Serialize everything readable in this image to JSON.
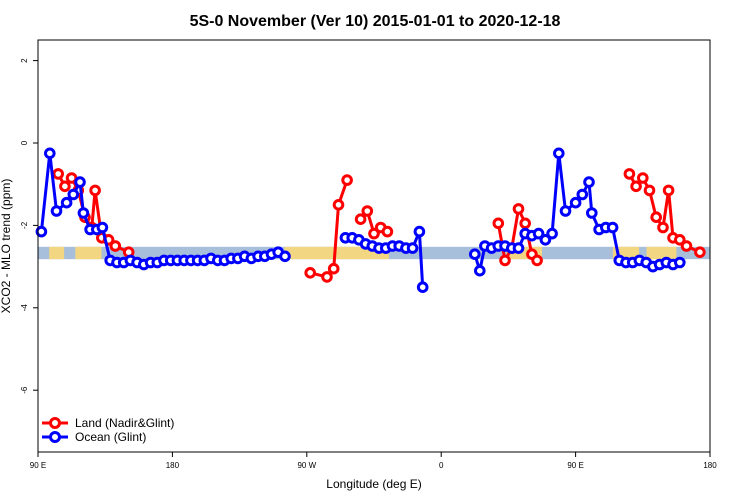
{
  "chart_data": {
    "type": "line",
    "title": "5S-0 November (Ver 10)   2015-01-01 to 2020-12-18",
    "xlabel": "Longitude (deg E)",
    "ylabel": "XCO2 - MLO trend (ppm)",
    "xlim": [
      90,
      450
    ],
    "ylim": [
      -7.5,
      2.5
    ],
    "x_tick_values": [
      90,
      162,
      234,
      306,
      378,
      450
    ],
    "x_tick_labels": [
      "90 E",
      "180",
      "90 W",
      "0",
      "90 E",
      "180"
    ],
    "y_ticks": [
      -6,
      -4,
      -2,
      0,
      2
    ],
    "grid": false,
    "legend_position": "bottom-left",
    "band": {
      "y_low": -2.82,
      "y_high": -2.52,
      "ocean_color": "#a8bfdc",
      "land_color": "#f6d77c"
    },
    "series": [
      {
        "name": "Land (Nadir&Glint)",
        "color": "#ff0000",
        "points": [
          [
            100.8,
            -0.75
          ],
          [
            104.4,
            -1.05
          ],
          [
            108.0,
            -0.85
          ],
          [
            111.6,
            -1.15
          ],
          [
            115.2,
            -1.8
          ],
          [
            118.8,
            -2.05
          ],
          [
            120.6,
            -1.15
          ],
          [
            124.2,
            -2.3
          ],
          [
            127.8,
            -2.35
          ],
          [
            131.4,
            -2.5
          ],
          [
            138.6,
            -2.65
          ],
          null,
          [
            235.8,
            -3.15
          ],
          [
            244.8,
            -3.25
          ],
          [
            248.4,
            -3.05
          ],
          [
            251.0,
            -1.5
          ],
          [
            255.6,
            -0.9
          ],
          null,
          [
            262.8,
            -1.85
          ],
          [
            266.4,
            -1.65
          ],
          [
            270.0,
            -2.2
          ],
          [
            273.6,
            -2.05
          ],
          [
            277.2,
            -2.15
          ],
          null,
          [
            336.6,
            -1.95
          ],
          [
            340.2,
            -2.85
          ],
          [
            343.8,
            -2.55
          ],
          [
            347.4,
            -1.6
          ],
          [
            351.0,
            -1.95
          ],
          [
            354.6,
            -2.7
          ],
          [
            357.4,
            -2.85
          ],
          null,
          [
            406.8,
            -0.75
          ],
          [
            410.4,
            -1.05
          ],
          [
            414.0,
            -0.85
          ],
          [
            417.6,
            -1.15
          ],
          [
            421.2,
            -1.8
          ],
          [
            424.8,
            -2.05
          ],
          [
            427.8,
            -1.15
          ],
          [
            430.2,
            -2.3
          ],
          [
            433.8,
            -2.35
          ],
          [
            437.4,
            -2.5
          ],
          [
            444.6,
            -2.65
          ]
        ]
      },
      {
        "name": "Ocean (Glint)",
        "color": "#0000ff",
        "points": [
          [
            91.8,
            -2.15
          ],
          [
            96.3,
            -0.25
          ],
          [
            99.9,
            -1.65
          ],
          [
            105.3,
            -1.45
          ],
          [
            108.9,
            -1.25
          ],
          [
            112.5,
            -0.95
          ],
          [
            114.3,
            -1.7
          ],
          [
            117.9,
            -2.1
          ],
          [
            121.5,
            -2.1
          ],
          [
            124.5,
            -2.05
          ],
          [
            128.7,
            -2.85
          ],
          [
            132.3,
            -2.9
          ],
          [
            135.9,
            -2.9
          ],
          [
            139.5,
            -2.85
          ],
          [
            143.1,
            -2.9
          ],
          [
            146.7,
            -2.95
          ],
          [
            150.3,
            -2.9
          ],
          [
            153.9,
            -2.9
          ],
          [
            157.5,
            -2.85
          ],
          [
            161.1,
            -2.85
          ],
          [
            164.7,
            -2.85
          ],
          [
            168.3,
            -2.85
          ],
          [
            171.9,
            -2.85
          ],
          [
            175.5,
            -2.85
          ],
          [
            179.1,
            -2.85
          ],
          [
            182.7,
            -2.8
          ],
          [
            186.3,
            -2.85
          ],
          [
            189.9,
            -2.85
          ],
          [
            193.5,
            -2.8
          ],
          [
            197.1,
            -2.8
          ],
          [
            200.7,
            -2.75
          ],
          [
            204.3,
            -2.8
          ],
          [
            207.9,
            -2.75
          ],
          [
            211.5,
            -2.75
          ],
          [
            215.1,
            -2.7
          ],
          [
            218.7,
            -2.65
          ],
          [
            222.3,
            -2.75
          ],
          null,
          [
            254.7,
            -2.3
          ],
          [
            258.3,
            -2.3
          ],
          [
            261.9,
            -2.35
          ],
          [
            265.5,
            -2.45
          ],
          [
            269.1,
            -2.5
          ],
          [
            272.7,
            -2.55
          ],
          [
            276.3,
            -2.55
          ],
          [
            279.9,
            -2.5
          ],
          [
            283.5,
            -2.5
          ],
          [
            287.1,
            -2.55
          ],
          [
            290.7,
            -2.55
          ],
          [
            294.3,
            -2.15
          ],
          [
            296.1,
            -3.5
          ],
          null,
          [
            324.0,
            -2.7
          ],
          [
            326.7,
            -3.1
          ],
          [
            329.4,
            -2.5
          ],
          [
            333.0,
            -2.55
          ],
          [
            336.6,
            -2.5
          ],
          [
            340.2,
            -2.5
          ],
          [
            343.8,
            -2.55
          ],
          [
            347.4,
            -2.55
          ],
          [
            351.0,
            -2.2
          ],
          [
            354.6,
            -2.25
          ],
          [
            358.2,
            -2.2
          ],
          [
            361.8,
            -2.35
          ],
          [
            365.4,
            -2.2
          ],
          [
            369.0,
            -0.25
          ],
          [
            372.6,
            -1.65
          ],
          [
            378.0,
            -1.45
          ],
          [
            381.6,
            -1.25
          ],
          [
            385.2,
            -0.95
          ],
          [
            386.7,
            -1.7
          ],
          [
            390.6,
            -2.1
          ],
          [
            394.2,
            -2.05
          ],
          [
            397.8,
            -2.05
          ],
          [
            401.4,
            -2.85
          ],
          [
            405.0,
            -2.9
          ],
          [
            408.6,
            -2.9
          ],
          [
            412.2,
            -2.85
          ],
          [
            415.8,
            -2.9
          ],
          [
            419.4,
            -3.0
          ],
          [
            423.0,
            -2.95
          ],
          [
            426.6,
            -2.9
          ],
          [
            430.2,
            -2.95
          ],
          [
            433.8,
            -2.9
          ]
        ]
      }
    ]
  }
}
